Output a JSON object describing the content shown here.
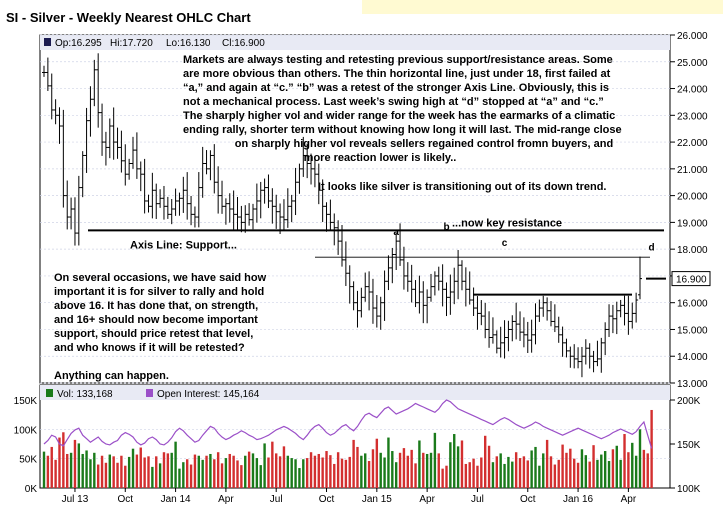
{
  "chart_data": {
    "type": "ohlc",
    "title": "SI - Silver - Weekly Nearest OHLC Chart",
    "price_panel": {
      "header": {
        "open": "Op:16.295",
        "high": "Hi:17.720",
        "low": "Lo:16.130",
        "close": "Cl:16.900"
      },
      "y_ticks": [
        "26.000",
        "25.000",
        "24.000",
        "23.000",
        "22.000",
        "21.000",
        "20.000",
        "19.000",
        "18.000",
        "17.000",
        "16.000",
        "15.000",
        "14.000",
        "13.000"
      ],
      "ylim": [
        13,
        26
      ],
      "last_price_label": "16.900",
      "x_ticks": [
        "Jul 13",
        "Oct",
        "Jan 14",
        "Apr",
        "Jul",
        "Oct",
        "Jan 15",
        "Apr",
        "Jul",
        "Oct",
        "Jan 16",
        "Apr"
      ],
      "closes": [
        24.6,
        24.1,
        23.2,
        23.0,
        22.6,
        20.0,
        19.2,
        19.5,
        18.6,
        20.3,
        21.5,
        22.8,
        23.6,
        24.7,
        23.1,
        22.0,
        21.8,
        22.6,
        22.0,
        21.8,
        21.3,
        20.8,
        21.2,
        21.7,
        21.0,
        20.8,
        19.8,
        19.6,
        20.2,
        19.7,
        19.9,
        19.6,
        19.3,
        19.5,
        19.8,
        19.9,
        20.2,
        19.7,
        19.3,
        19.2,
        20.3,
        21.2,
        21.0,
        21.5,
        20.5,
        20.0,
        19.6,
        19.7,
        19.5,
        19.3,
        19.2,
        19.0,
        19.3,
        19.1,
        19.5,
        19.8,
        20.2,
        20.3,
        19.8,
        19.6,
        19.4,
        19.2,
        19.1,
        19.6,
        19.8,
        20.5,
        21.0,
        21.5,
        21.2,
        21.0,
        20.8,
        20.2,
        19.6,
        19.3,
        19.0,
        18.8,
        18.3,
        17.6,
        17.1,
        16.6,
        16.0,
        15.7,
        16.2,
        16.6,
        16.4,
        15.8,
        15.5,
        16.0,
        16.8,
        17.3,
        17.8,
        18.3,
        17.6,
        17.0,
        16.8,
        16.5,
        16.0,
        16.4,
        15.9,
        16.2,
        16.6,
        17.0,
        16.8,
        16.5,
        16.2,
        16.4,
        16.8,
        17.4,
        16.8,
        16.5,
        16.1,
        15.8,
        15.6,
        15.5,
        15.0,
        14.7,
        14.8,
        14.3,
        14.5,
        14.7,
        15.0,
        15.3,
        15.2,
        14.9,
        14.8,
        14.6,
        14.8,
        15.5,
        15.8,
        16.0,
        15.7,
        15.3,
        15.1,
        14.8,
        14.5,
        14.2,
        14.0,
        13.9,
        13.8,
        14.0,
        14.3,
        14.0,
        13.8,
        13.9,
        14.5,
        15.0,
        15.5,
        15.4,
        15.7,
        15.9,
        15.6,
        15.3,
        15.6,
        16.1,
        16.9
      ],
      "axis_line": {
        "label": "Axis Line:  Support...",
        "value": 18.7
      },
      "resistance_line": {
        "label": "...now key resistance",
        "value": 17.7
      },
      "support_line": {
        "value": 16.3
      },
      "swing_points": [
        {
          "label": "a",
          "week": 91,
          "value": 18.3
        },
        {
          "label": "b",
          "week": 104,
          "value": 18.5
        },
        {
          "label": "c",
          "week": 119,
          "value": 17.9
        },
        {
          "label": "d",
          "week": 157,
          "value": 17.72
        }
      ],
      "annotations": [
        "Markets are always testing and retesting previous support/resistance areas.  Some",
        "are more obvious than others.  The thin horizontal line, just under 18, first failed at",
        "“a,” and again at “c.”  “b” was a retest of the stronger Axis Line.  Obviously, this is",
        "not a mechanical process.  Last week’s swing high at “d” stopped at “a” and “c.”",
        "The sharply higher vol and wider range for the week has the earmarks of a climatic",
        "ending rally, shorter term without knowing how long it will last.  The mid-range close",
        "on sharply higher vol reveals sellers regained control fromn buyers, and",
        "more reaction lower is likely..",
        "It looks like silver is transitioning out of its down trend.",
        "On several occasions, we have said how",
        "important it is for silver to rally and hold",
        "above 16.  It has done that, on strength,",
        "and 16+ should now become important",
        "support, should price retest that level,",
        "and who knows if it will be retested?",
        "Anything can happen."
      ]
    },
    "volume_panel": {
      "legend": [
        {
          "label": "Vol: 133,168",
          "color": "#1a7a1a"
        },
        {
          "label": "Open Interest: 145,164",
          "color": "#9b50c8"
        }
      ],
      "volume_ylim": [
        0,
        150000
      ],
      "volume_ticks_left": [
        "150K",
        "100K",
        "50K",
        "0K"
      ],
      "oi_ylim": [
        100000,
        200000
      ],
      "oi_ticks_right": [
        "200K",
        "150K",
        "100K"
      ],
      "volumes": [
        62,
        55,
        70,
        48,
        86,
        95,
        58,
        60,
        82,
        76,
        58,
        64,
        49,
        60,
        40,
        55,
        43,
        57,
        54,
        43,
        55,
        38,
        53,
        67,
        57,
        69,
        52,
        54,
        36,
        54,
        42,
        61,
        59,
        60,
        79,
        33,
        44,
        49,
        40,
        57,
        55,
        48,
        55,
        58,
        49,
        61,
        42,
        51,
        58,
        55,
        47,
        39,
        55,
        62,
        59,
        51,
        39,
        76,
        52,
        79,
        59,
        54,
        71,
        55,
        51,
        49,
        34,
        49,
        51,
        61,
        55,
        58,
        52,
        63,
        56,
        41,
        61,
        50,
        48,
        53,
        82,
        70,
        55,
        59,
        46,
        66,
        84,
        60,
        52,
        86,
        63,
        44,
        60,
        68,
        55,
        65,
        42,
        81,
        60,
        58,
        60,
        94,
        59,
        33,
        38,
        78,
        92,
        71,
        81,
        41,
        44,
        50,
        38,
        52,
        89,
        72,
        44,
        54,
        59,
        41,
        53,
        45,
        61,
        51,
        54,
        47,
        64,
        70,
        38,
        59,
        82,
        54,
        40,
        48,
        74,
        60,
        67,
        50,
        43,
        66,
        56,
        45,
        73,
        48,
        57,
        63,
        46,
        66,
        72,
        48,
        92,
        61,
        77,
        55,
        100,
        65,
        59,
        133
      ],
      "open_interest": [
        150,
        154,
        160,
        158,
        150,
        148,
        155,
        162,
        166,
        168,
        160,
        156,
        152,
        155,
        158,
        153,
        150,
        149,
        152,
        154,
        160,
        163,
        161,
        158,
        152,
        149,
        151,
        156,
        158,
        155,
        150,
        149,
        152,
        157,
        164,
        168,
        165,
        160,
        156,
        152,
        154,
        160,
        165,
        170,
        168,
        162,
        158,
        155,
        157,
        160,
        162,
        165,
        163,
        160,
        158,
        155,
        156,
        158,
        160,
        163,
        166,
        168,
        170,
        168,
        165,
        162,
        158,
        155,
        160,
        166,
        170,
        172,
        168,
        163,
        160,
        162,
        166,
        170,
        172,
        168,
        165,
        170,
        177,
        183,
        185,
        182,
        180,
        185,
        190,
        192,
        188,
        184,
        186,
        188,
        190,
        193,
        196,
        194,
        192,
        190,
        188,
        186,
        190,
        196,
        200,
        198,
        194,
        190,
        188,
        186,
        184,
        182,
        180,
        178,
        176,
        174,
        172,
        175,
        178,
        180,
        178,
        175,
        172,
        170,
        168,
        170,
        172,
        175,
        173,
        170,
        168,
        166,
        164,
        162,
        160,
        162,
        164,
        166,
        168,
        166,
        164,
        162,
        160,
        158,
        156,
        158,
        160,
        163,
        165,
        167,
        165,
        163,
        161,
        164,
        170,
        175,
        160,
        145
      ]
    }
  }
}
